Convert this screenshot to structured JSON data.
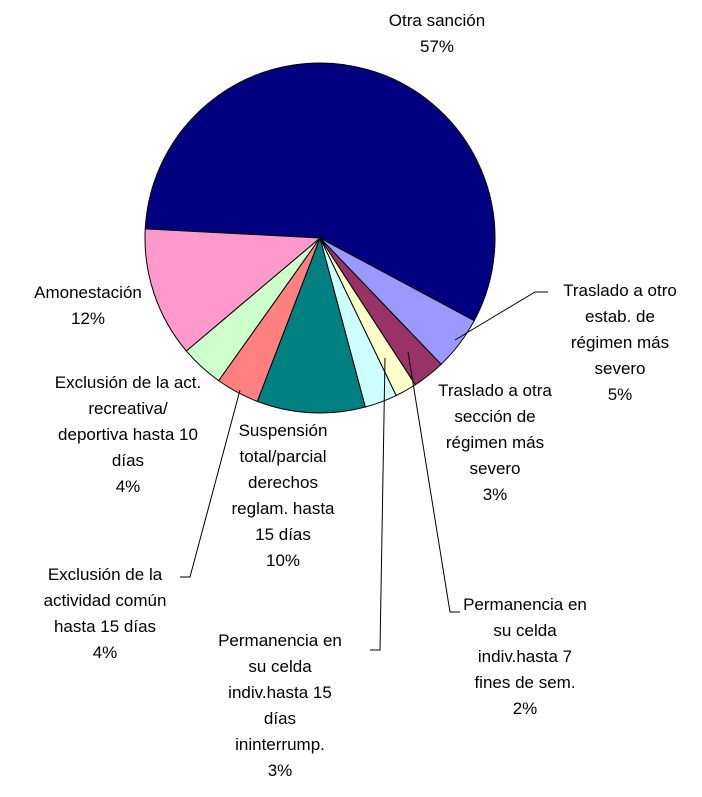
{
  "chart_data": {
    "type": "pie",
    "categories": [
      "Otra sanción",
      "Traslado a otro estab. de régimen más severo",
      "Traslado a otra sección de régimen más severo",
      "Permanencia en su celda indiv.hasta 7 fines de sem.",
      "Permanencia en su celda indiv.hasta 15 días ininterrump.",
      "Suspensión total/parcial derechos reglam. hasta 15 días",
      "Exclusión de la actividad común hasta 15 días",
      "Exclusión de la act. recreativa/ deportiva hasta 10 días",
      "Amonestación"
    ],
    "values": [
      57,
      5,
      3,
      2,
      3,
      10,
      4,
      4,
      12
    ],
    "value_labels": [
      "57%",
      "5%",
      "3%",
      "2%",
      "3%",
      "10%",
      "4%",
      "4%",
      "12%"
    ],
    "colors": [
      "#000080",
      "#9999ff",
      "#993366",
      "#ffffcc",
      "#ccffff",
      "#008080",
      "#ff8080",
      "#ccffcc",
      "#ff99cc"
    ]
  }
}
